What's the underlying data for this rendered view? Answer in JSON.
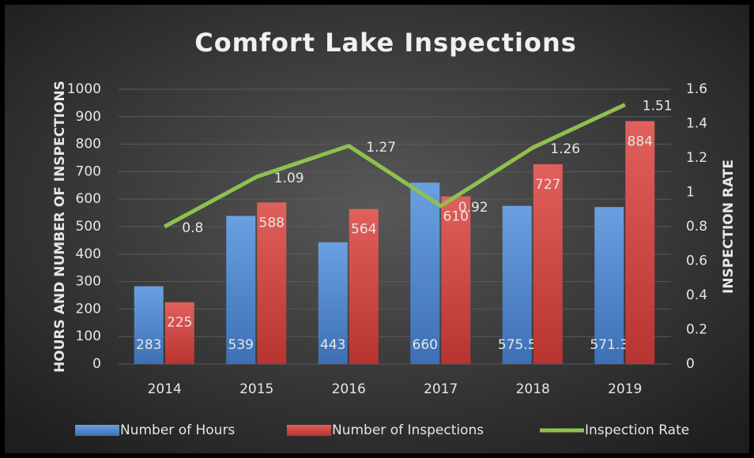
{
  "chart_data": {
    "type": "bar",
    "title": "Comfort Lake Inspections",
    "y_label": "HOURS AND NUMBER OF INSPECTIONS",
    "y2_label": "INSPECTION RATE",
    "categories": [
      "2014",
      "2015",
      "2016",
      "2017",
      "2018",
      "2019"
    ],
    "series": [
      {
        "name": "Number of Hours",
        "type": "bar",
        "color": "#4f81c7",
        "values": [
          283,
          539,
          443,
          660,
          575.5,
          571.3
        ]
      },
      {
        "name": "Number of Inspections",
        "type": "bar",
        "color": "#c9413f",
        "values": [
          225,
          588,
          564,
          610,
          727,
          884
        ]
      },
      {
        "name": "Inspection Rate",
        "type": "line",
        "axis": "y2",
        "color": "#8fc04f",
        "values": [
          0.8,
          1.09,
          1.27,
          0.92,
          1.26,
          1.51
        ]
      }
    ],
    "ylim": [
      0,
      1000
    ],
    "yticks": [
      0,
      100,
      200,
      300,
      400,
      500,
      600,
      700,
      800,
      900,
      1000
    ],
    "y2lim": [
      0,
      1.6
    ],
    "y2ticks": [
      0,
      0.2,
      0.4,
      0.6,
      0.8,
      1,
      1.2,
      1.4,
      1.6
    ],
    "grid": true,
    "legend": "bottom"
  }
}
